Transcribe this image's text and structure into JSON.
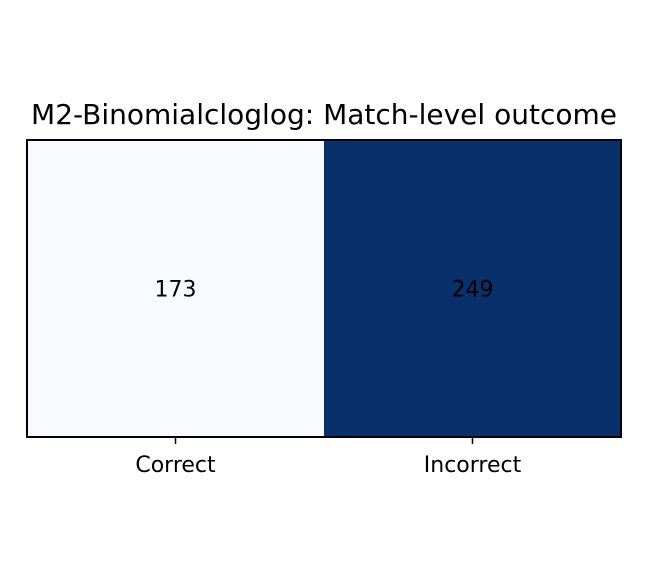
{
  "chart_data": {
    "type": "heatmap",
    "title": "M2-Binomialcloglog: Match-level outcome",
    "categories": [
      "Correct",
      "Incorrect"
    ],
    "values": [
      173,
      249
    ],
    "xlabel": "",
    "ylabel": "",
    "colormap": "Blues",
    "cell_colors": [
      "#f7fbff",
      "#08306b"
    ],
    "value_text_colors": [
      "#000000",
      "#000000"
    ],
    "grid": false,
    "legend": "none"
  }
}
